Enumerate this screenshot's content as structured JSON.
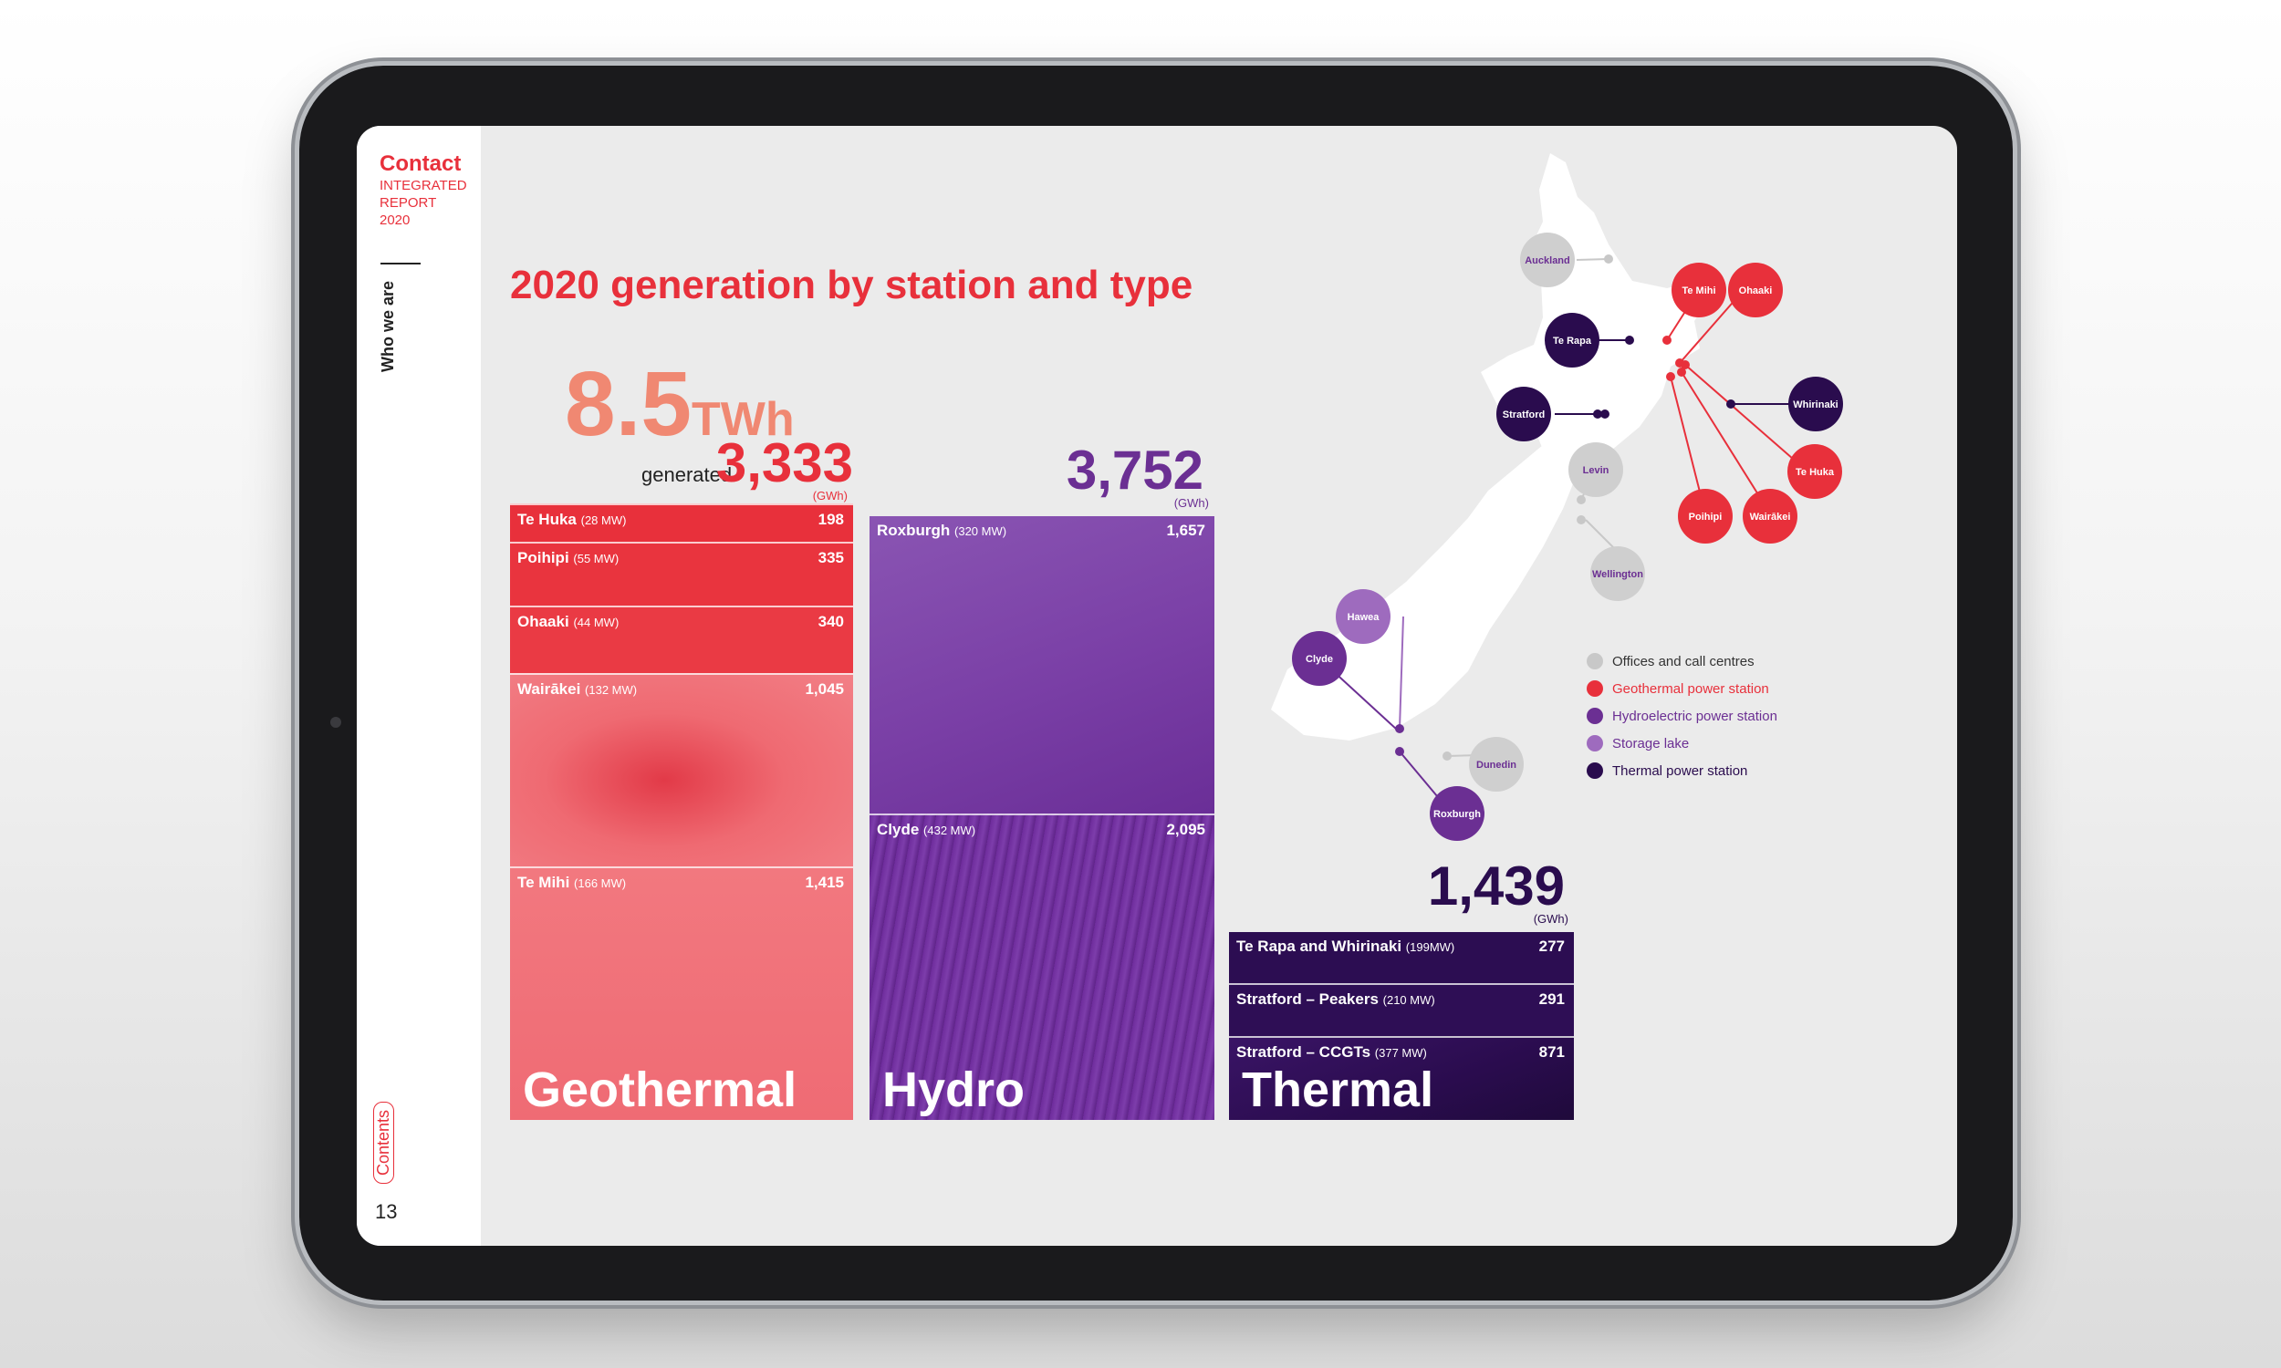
{
  "brand": {
    "name": "Contact",
    "line1": "INTEGRATED",
    "line2": "REPORT",
    "line3": "2020"
  },
  "sidebar": {
    "section": "Who we are",
    "contents": "Contents",
    "page_number": "13"
  },
  "title": "2020 generation by station and type",
  "total": {
    "value": "8.5",
    "unit": "TWh",
    "label": "generated"
  },
  "colors": {
    "geothermal": "#e8303b",
    "hydro": "#6b2f93",
    "thermal": "#2a0c4e",
    "offices": "#c8c8c8",
    "storage": "#9e6bbe"
  },
  "geothermal": {
    "total": "3,333",
    "unit": "(GWh)",
    "type_label": "Geothermal",
    "stations": [
      {
        "name": "Te Huka",
        "mw": "(28 MW)",
        "gwh": "198"
      },
      {
        "name": "Poihipi",
        "mw": "(55 MW)",
        "gwh": "335"
      },
      {
        "name": "Ohaaki",
        "mw": "(44 MW)",
        "gwh": "340"
      },
      {
        "name": "Wairākei",
        "mw": "(132 MW)",
        "gwh": "1,045"
      },
      {
        "name": "Te Mihi",
        "mw": "(166 MW)",
        "gwh": "1,415"
      }
    ]
  },
  "hydro": {
    "total": "3,752",
    "unit": "(GWh)",
    "type_label": "Hydro",
    "stations": [
      {
        "name": "Roxburgh",
        "mw": "(320 MW)",
        "gwh": "1,657"
      },
      {
        "name": "Clyde",
        "mw": "(432 MW)",
        "gwh": "2,095"
      }
    ]
  },
  "thermal": {
    "total": "1,439",
    "unit": "(GWh)",
    "type_label": "Thermal",
    "stations": [
      {
        "name": "Te Rapa and Whirinaki",
        "mw": "(199MW)",
        "gwh": "277"
      },
      {
        "name": "Stratford – Peakers",
        "mw": "(210 MW)",
        "gwh": "291"
      },
      {
        "name": "Stratford – CCGTs",
        "mw": "(377 MW)",
        "gwh": "871"
      }
    ]
  },
  "map": {
    "labels": {
      "auckland": "Auckland",
      "te_mihi": "Te Mihi",
      "ohaaki": "Ohaaki",
      "te_rapa": "Te Rapa",
      "stratford": "Stratford",
      "whirinaki": "Whirinaki",
      "levin": "Levin",
      "te_huka": "Te Huka",
      "poihipi": "Poihipi",
      "wairakei": "Wairākei",
      "wellington": "Wellington",
      "hawea": "Hawea",
      "clyde": "Clyde",
      "dunedin": "Dunedin",
      "roxburgh": "Roxburgh"
    }
  },
  "legend": [
    {
      "label": "Offices and call centres",
      "color": "#c8c8c8",
      "text_color": "#333333"
    },
    {
      "label": "Geothermal power station",
      "color": "#e8303b",
      "text_color": "#e8303b"
    },
    {
      "label": "Hydroelectric power station",
      "color": "#6b2f93",
      "text_color": "#6b2f93"
    },
    {
      "label": "Storage lake",
      "color": "#9e6bbe",
      "text_color": "#6b2f93"
    },
    {
      "label": "Thermal power station",
      "color": "#2a0c4e",
      "text_color": "#2a0c4e"
    }
  ]
}
